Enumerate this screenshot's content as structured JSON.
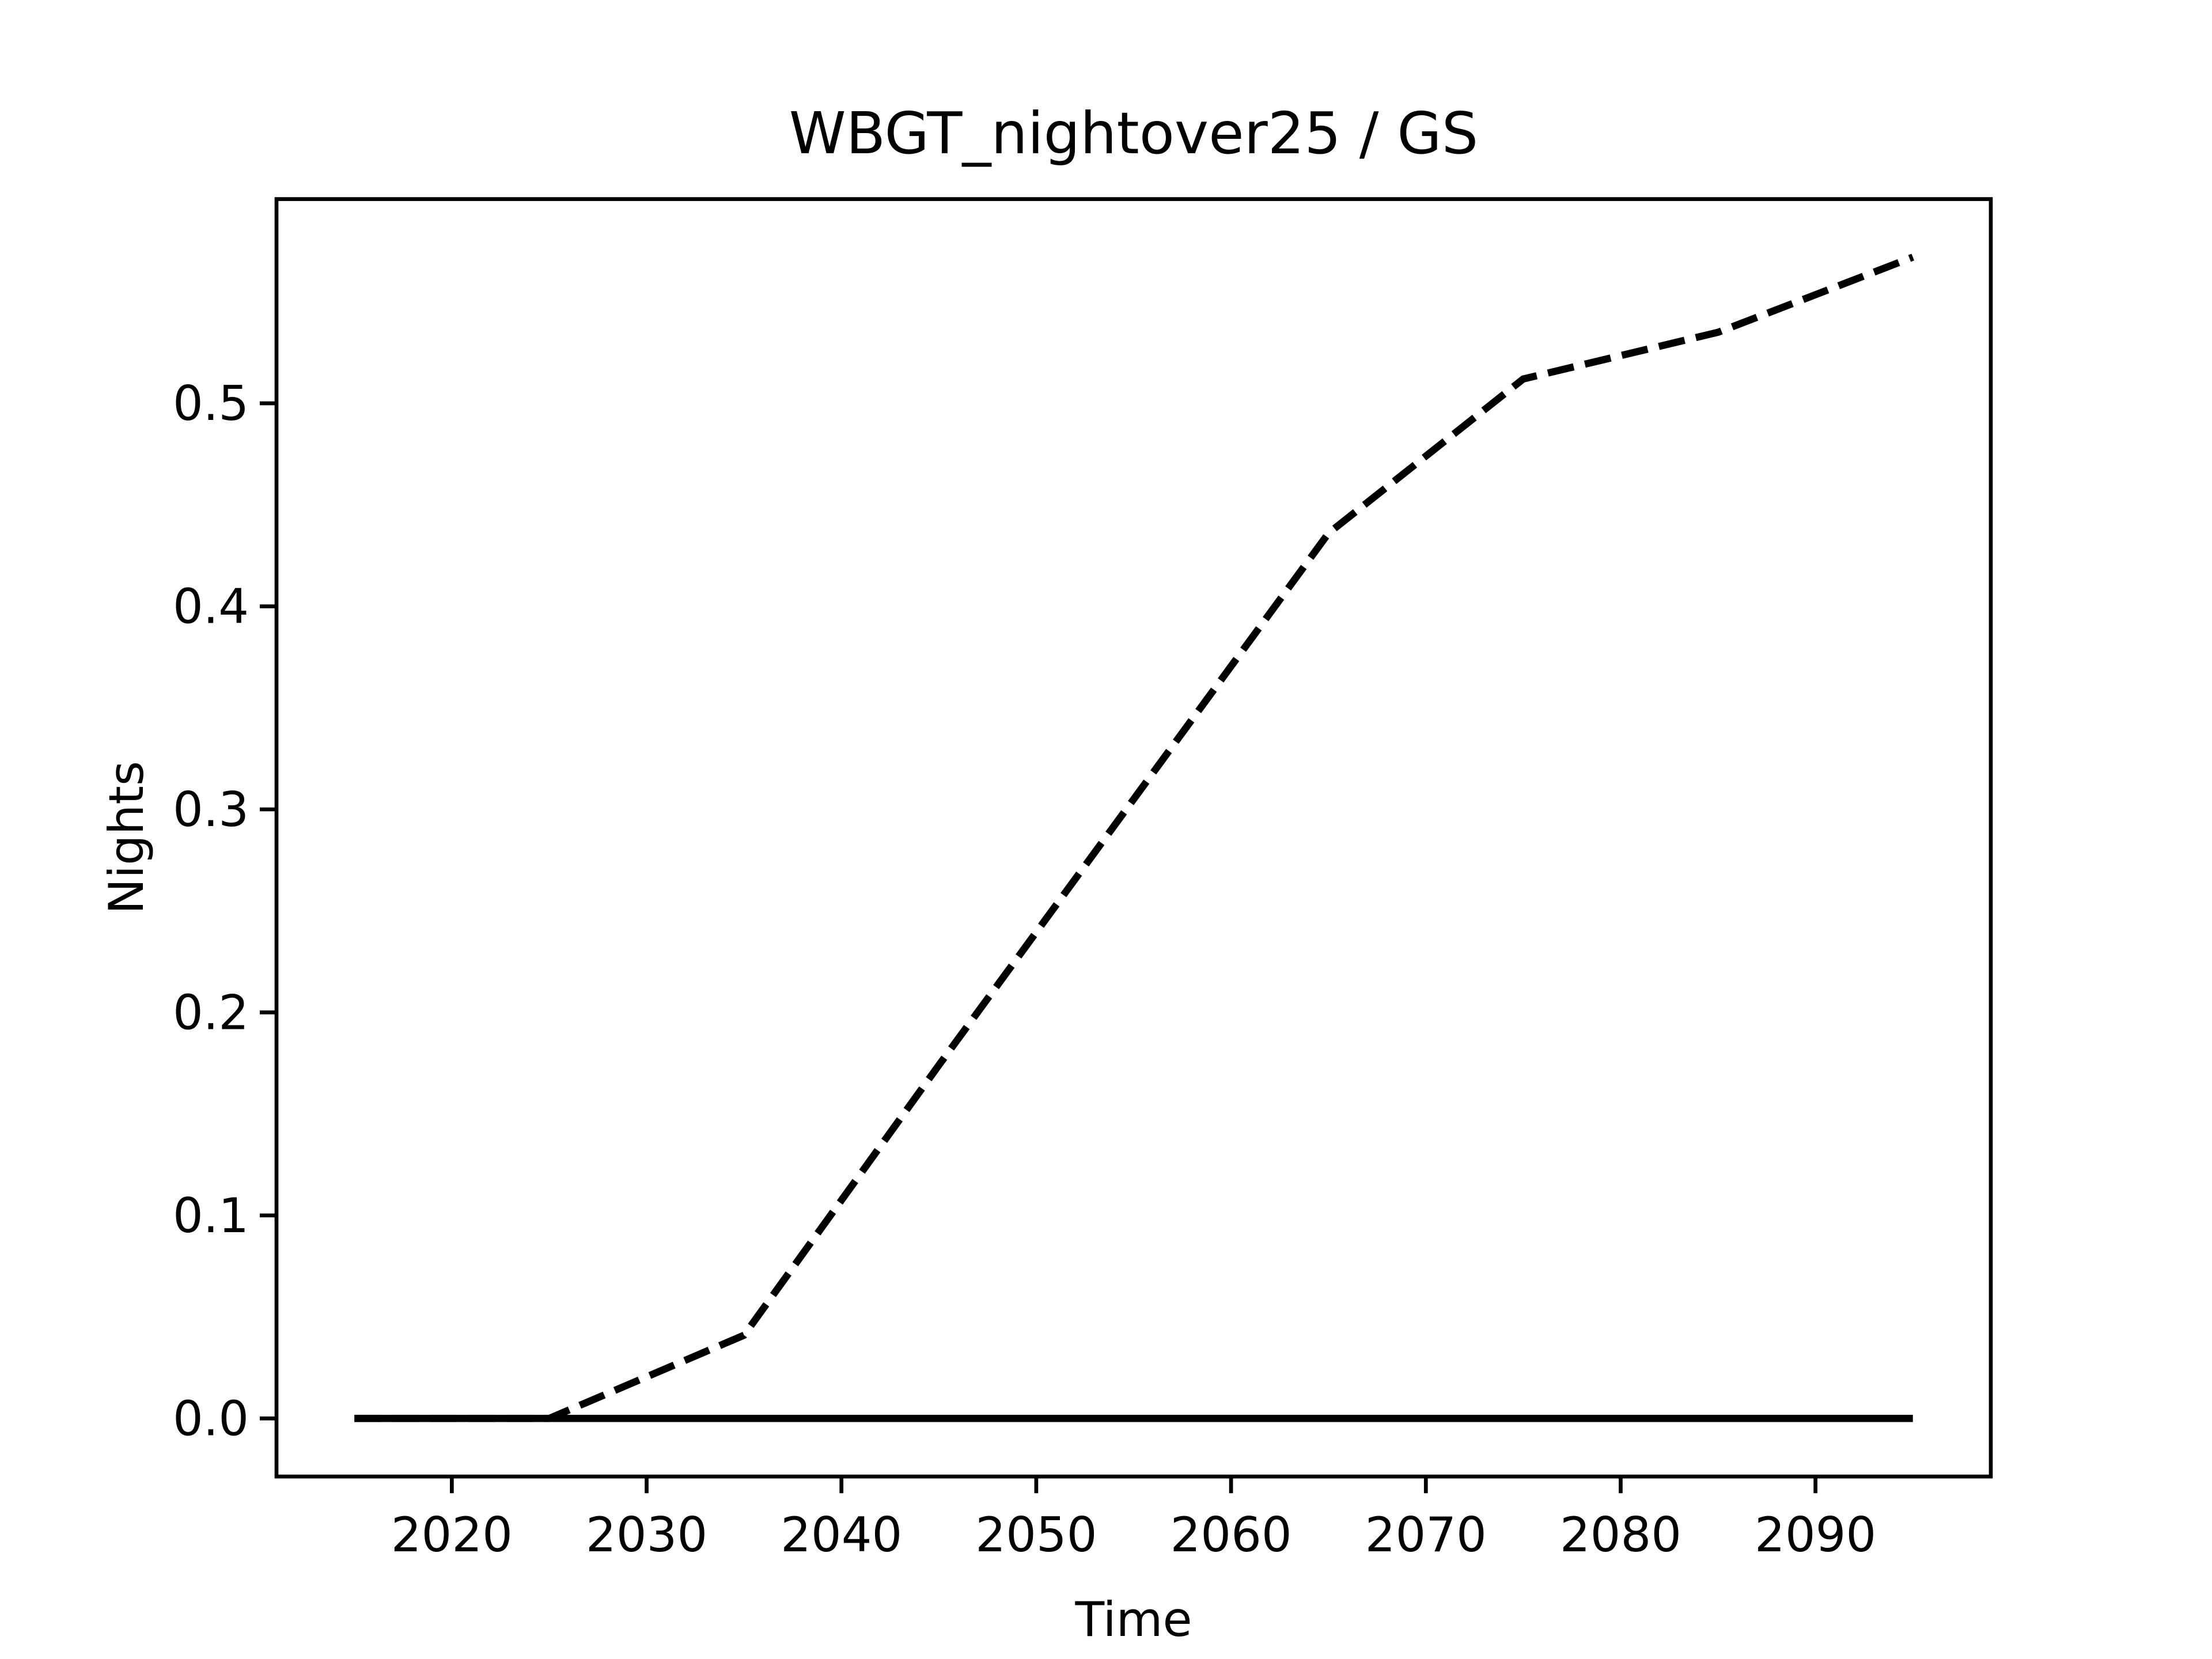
{
  "chart_data": {
    "type": "line",
    "title": "WBGT_nightover25 / GS",
    "x_label": "Time",
    "y_label": "Nights",
    "x": [
      2015,
      2025,
      2035,
      2045,
      2055,
      2065,
      2075,
      2085,
      2095
    ],
    "series": [
      {
        "color": "#000000",
        "linestyle": "dashed",
        "values": [
          0,
          0,
          0.041,
          0.174,
          0.305,
          0.436,
          0.512,
          0.535,
          0.572
        ]
      },
      {
        "color": "#000000",
        "linestyle": "solid",
        "values": [
          0,
          0,
          0,
          0,
          0,
          0,
          0,
          0,
          0
        ]
      }
    ],
    "xlim": [
      2011,
      2099
    ],
    "xticks": [
      2020,
      2030,
      2040,
      2050,
      2060,
      2070,
      2080,
      2090
    ],
    "ylim": [
      -0.0286,
      0.6006
    ],
    "yticks": [
      {
        "value": 0,
        "label": "0.0"
      },
      0.1,
      0.2,
      0.3,
      0.4,
      0.5
    ],
    "grid": false
  }
}
